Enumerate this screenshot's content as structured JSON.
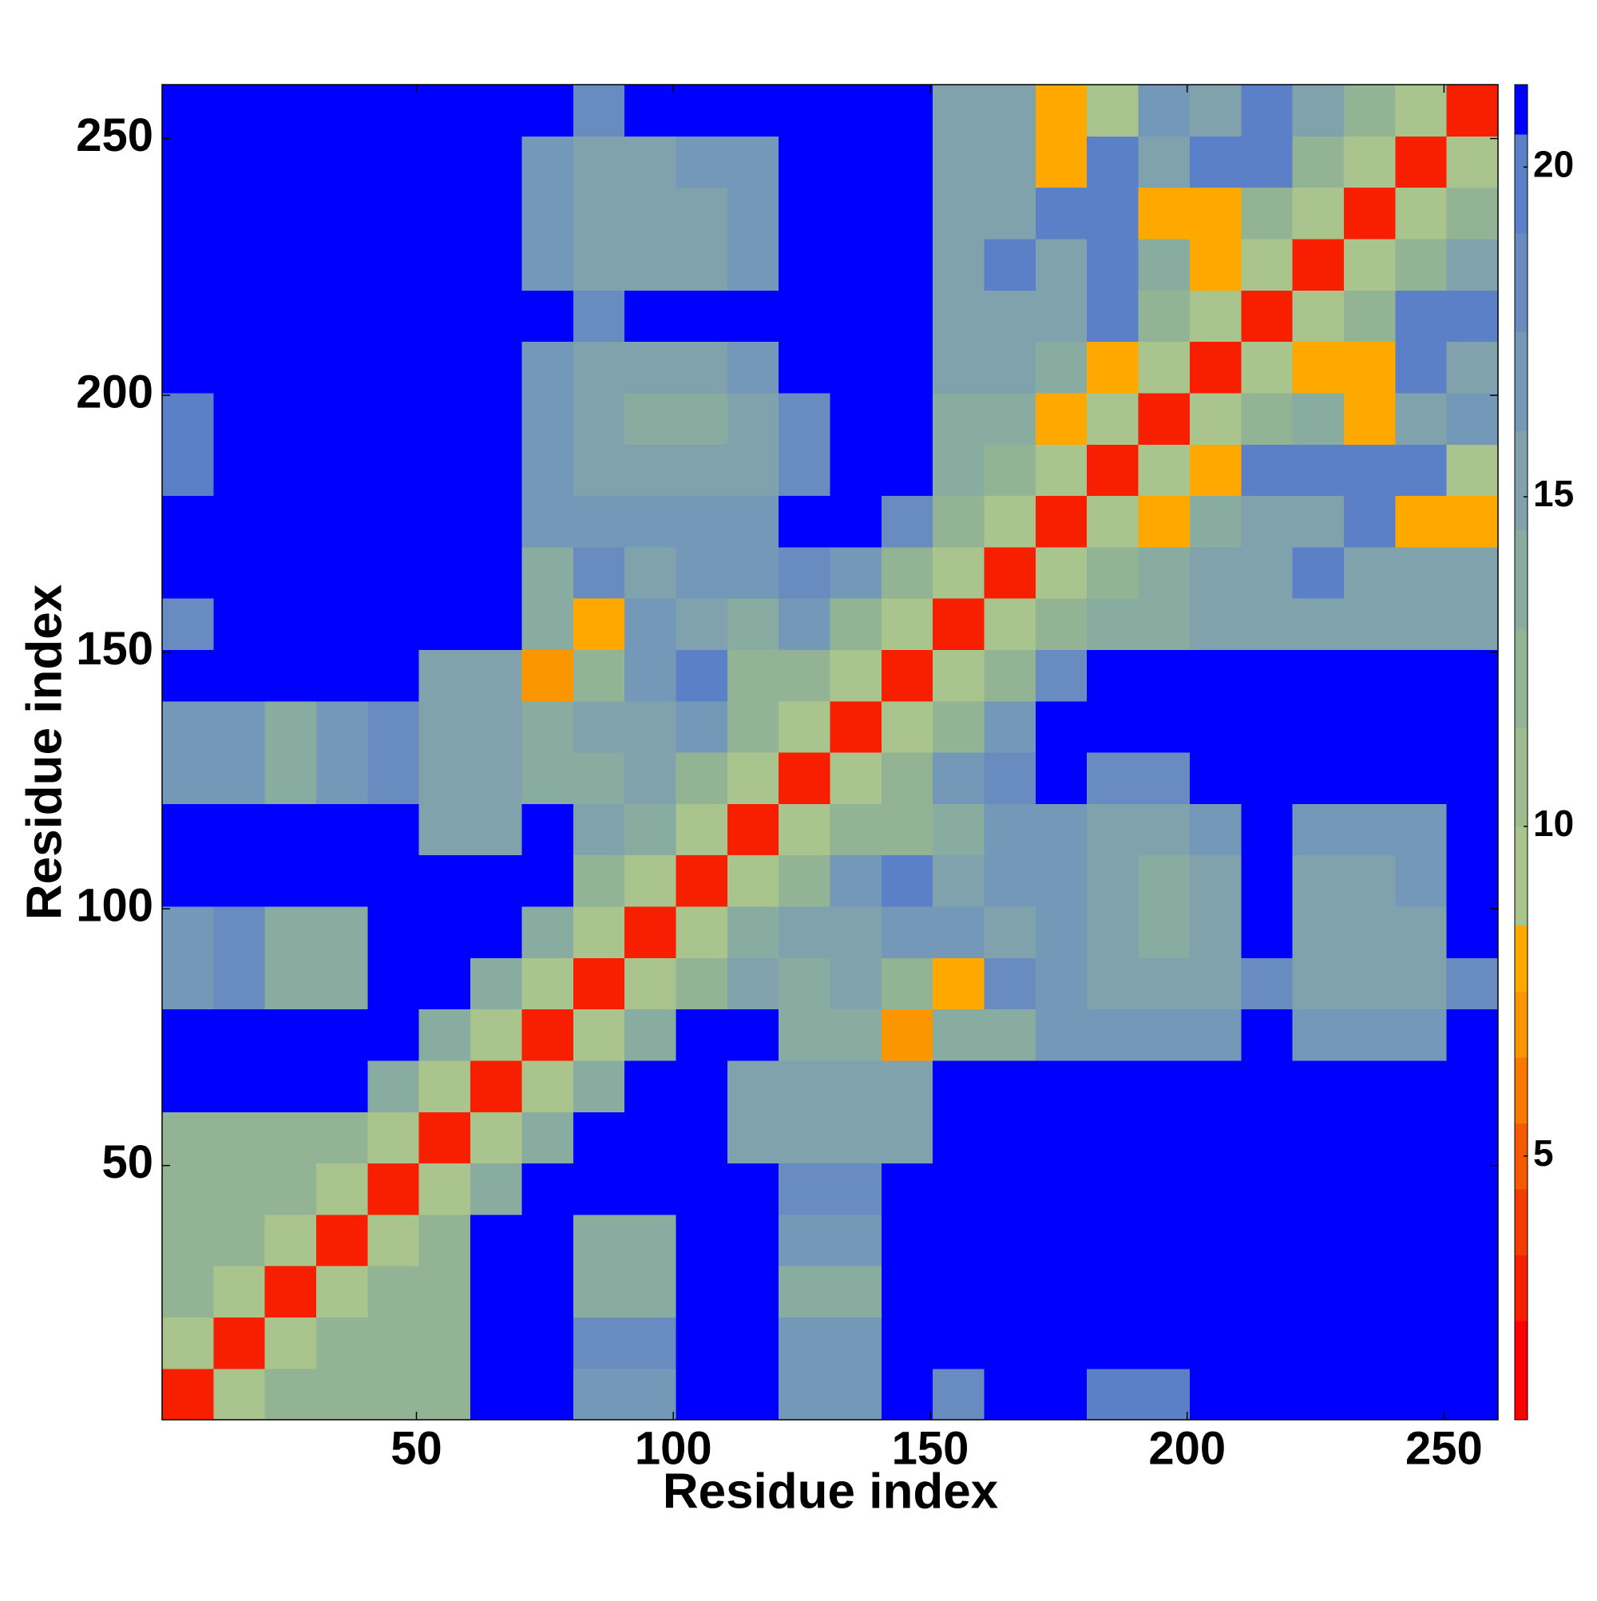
{
  "chart_data": {
    "type": "heatmap",
    "xlabel": "Residue index",
    "ylabel": "Residue index",
    "x": [
      5.5,
      15.5,
      25.5,
      35.5,
      45.5,
      55.5,
      65.5,
      75.5,
      85.5,
      95.5,
      105.5,
      115.5,
      125.5,
      135.5,
      145.5,
      155.5,
      165.5,
      175.5,
      185.5,
      195.5,
      205.5,
      215.5,
      225.5,
      235.5,
      245.5,
      255.5
    ],
    "y": [
      5.5,
      15.5,
      25.5,
      35.5,
      45.5,
      55.5,
      65.5,
      75.5,
      85.5,
      95.5,
      105.5,
      115.5,
      125.5,
      135.5,
      145.5,
      155.5,
      165.5,
      175.5,
      185.5,
      195.5,
      205.5,
      215.5,
      225.5,
      235.5,
      245.5,
      255.5
    ],
    "z": [
      [
        3,
        9,
        12,
        12,
        12,
        12,
        21,
        21,
        17,
        17,
        21,
        21,
        17,
        17,
        21,
        18,
        21,
        21,
        19,
        19,
        21,
        21,
        21,
        21,
        21,
        21
      ],
      [
        9,
        3,
        9,
        12,
        12,
        12,
        21,
        21,
        18,
        18,
        21,
        21,
        17,
        17,
        21,
        21,
        21,
        21,
        21,
        21,
        21,
        21,
        21,
        21,
        21,
        21
      ],
      [
        12,
        9,
        3,
        9,
        12,
        12,
        21,
        21,
        14,
        14,
        21,
        21,
        14,
        14,
        21,
        21,
        21,
        21,
        21,
        21,
        21,
        21,
        21,
        21,
        21,
        21
      ],
      [
        12,
        12,
        9,
        3,
        9,
        12,
        21,
        21,
        14,
        14,
        21,
        21,
        16,
        16,
        21,
        21,
        21,
        21,
        21,
        21,
        21,
        21,
        21,
        21,
        21,
        21
      ],
      [
        12,
        12,
        12,
        9,
        3,
        9,
        13,
        21,
        21,
        21,
        21,
        21,
        18,
        18,
        21,
        21,
        21,
        21,
        21,
        21,
        21,
        21,
        21,
        21,
        21,
        21
      ],
      [
        12,
        12,
        12,
        12,
        9,
        3,
        9,
        13,
        21,
        21,
        21,
        15,
        15,
        15,
        15,
        21,
        21,
        21,
        21,
        21,
        21,
        21,
        21,
        21,
        21,
        21
      ],
      [
        21,
        21,
        21,
        21,
        13,
        9,
        3,
        9,
        13,
        21,
        21,
        15,
        15,
        15,
        15,
        21,
        21,
        21,
        21,
        21,
        21,
        21,
        21,
        21,
        21,
        21
      ],
      [
        21,
        21,
        21,
        21,
        21,
        13,
        9,
        3,
        9,
        13,
        21,
        21,
        14,
        14,
        7,
        14,
        14,
        17,
        17,
        17,
        17,
        21,
        17,
        17,
        17,
        21
      ],
      [
        17,
        18,
        14,
        14,
        21,
        21,
        13,
        9,
        3,
        9,
        12,
        15,
        14,
        15,
        12,
        8,
        18,
        17,
        15,
        15,
        15,
        18,
        15,
        15,
        15,
        18
      ],
      [
        17,
        18,
        14,
        14,
        21,
        21,
        21,
        13,
        9,
        3,
        9,
        14,
        15,
        15,
        16,
        17,
        15,
        16,
        15,
        13,
        15,
        21,
        15,
        15,
        15,
        21
      ],
      [
        21,
        21,
        21,
        21,
        21,
        21,
        21,
        21,
        12,
        9,
        3,
        9,
        12,
        16,
        19,
        15,
        16,
        17,
        15,
        13,
        15,
        21,
        15,
        15,
        16,
        21
      ],
      [
        21,
        21,
        21,
        21,
        21,
        15,
        15,
        21,
        15,
        14,
        9,
        3,
        9,
        12,
        12,
        13,
        16,
        17,
        15,
        15,
        16,
        21,
        16,
        16,
        16,
        21
      ],
      [
        17,
        17,
        14,
        16,
        18,
        15,
        15,
        14,
        14,
        15,
        12,
        9,
        3,
        9,
        12,
        16,
        18,
        21,
        18,
        18,
        21,
        21,
        21,
        21,
        21,
        21
      ],
      [
        17,
        17,
        14,
        16,
        18,
        15,
        15,
        14,
        15,
        15,
        16,
        12,
        9,
        3,
        9,
        12,
        16,
        21,
        21,
        21,
        21,
        21,
        21,
        21,
        21,
        21
      ],
      [
        21,
        21,
        21,
        21,
        21,
        15,
        15,
        7,
        12,
        16,
        19,
        12,
        12,
        9,
        3,
        9,
        12,
        18,
        21,
        21,
        21,
        21,
        21,
        21,
        21,
        21
      ],
      [
        18,
        21,
        21,
        21,
        21,
        21,
        21,
        14,
        8,
        17,
        15,
        13,
        16,
        12,
        9,
        3,
        9,
        12,
        14,
        14,
        15,
        15,
        15,
        15,
        15,
        15
      ],
      [
        21,
        21,
        21,
        21,
        21,
        21,
        21,
        14,
        18,
        15,
        16,
        16,
        18,
        16,
        12,
        9,
        3,
        9,
        12,
        14,
        15,
        15,
        20,
        15,
        15,
        15
      ],
      [
        21,
        21,
        21,
        21,
        21,
        21,
        21,
        17,
        17,
        16,
        17,
        17,
        21,
        21,
        18,
        12,
        9,
        3,
        9,
        8,
        14,
        15,
        15,
        20,
        8,
        8
      ],
      [
        19,
        21,
        21,
        21,
        21,
        21,
        21,
        17,
        15,
        15,
        15,
        15,
        18,
        21,
        21,
        14,
        12,
        9,
        3,
        9,
        8,
        20,
        20,
        20,
        20,
        9
      ],
      [
        19,
        21,
        21,
        21,
        21,
        21,
        21,
        17,
        15,
        13,
        13,
        15,
        18,
        21,
        21,
        14,
        14,
        8,
        9,
        3,
        9,
        12,
        14,
        8,
        15,
        16
      ],
      [
        21,
        21,
        21,
        21,
        21,
        21,
        21,
        17,
        15,
        15,
        15,
        16,
        21,
        21,
        21,
        15,
        15,
        14,
        8,
        9,
        3,
        9,
        8,
        8,
        20,
        15
      ],
      [
        21,
        21,
        21,
        21,
        21,
        21,
        21,
        21,
        18,
        21,
        21,
        21,
        21,
        21,
        21,
        15,
        15,
        15,
        20,
        12,
        9,
        3,
        9,
        12,
        20,
        20
      ],
      [
        21,
        21,
        21,
        21,
        21,
        21,
        21,
        17,
        15,
        15,
        15,
        16,
        21,
        21,
        21,
        15,
        20,
        15,
        20,
        14,
        8,
        9,
        3,
        9,
        12,
        15
      ],
      [
        21,
        21,
        21,
        21,
        21,
        21,
        21,
        17,
        15,
        15,
        15,
        16,
        21,
        21,
        21,
        15,
        15,
        20,
        20,
        8,
        8,
        12,
        9,
        3,
        9,
        12
      ],
      [
        21,
        21,
        21,
        21,
        21,
        21,
        21,
        17,
        15,
        15,
        16,
        16,
        21,
        21,
        21,
        15,
        15,
        8,
        20,
        15,
        20,
        20,
        12,
        9,
        3,
        9
      ],
      [
        21,
        21,
        21,
        21,
        21,
        21,
        21,
        21,
        18,
        21,
        21,
        21,
        21,
        21,
        21,
        15,
        15,
        8,
        9,
        16,
        15,
        20,
        15,
        12,
        9,
        3
      ]
    ],
    "xlim": [
      0.5,
      260.5
    ],
    "ylim": [
      0.5,
      260.5
    ],
    "xticks": [
      50,
      100,
      150,
      200,
      250
    ],
    "yticks": [
      50,
      100,
      150,
      200,
      250
    ],
    "colorbar": {
      "lim": [
        1,
        21.25
      ],
      "ticks": [
        5,
        10,
        15,
        20
      ],
      "levels": [
        1,
        2.5,
        3.5,
        4.5,
        5.5,
        6.5,
        7.5,
        8.5,
        10,
        11.5,
        13,
        14.5,
        16,
        17.5,
        19,
        20.5,
        21.25
      ],
      "colors": [
        "#ff0000",
        "#f81e00",
        "#f53c00",
        "#f55a00",
        "#f87800",
        "#fb9600",
        "#ffa800",
        "#a9c48c",
        "#9ebc8e",
        "#93b494",
        "#89aca0",
        "#7fa2ac",
        "#7398b8",
        "#688cc0",
        "#5c80c8",
        "#0000ff"
      ]
    }
  }
}
